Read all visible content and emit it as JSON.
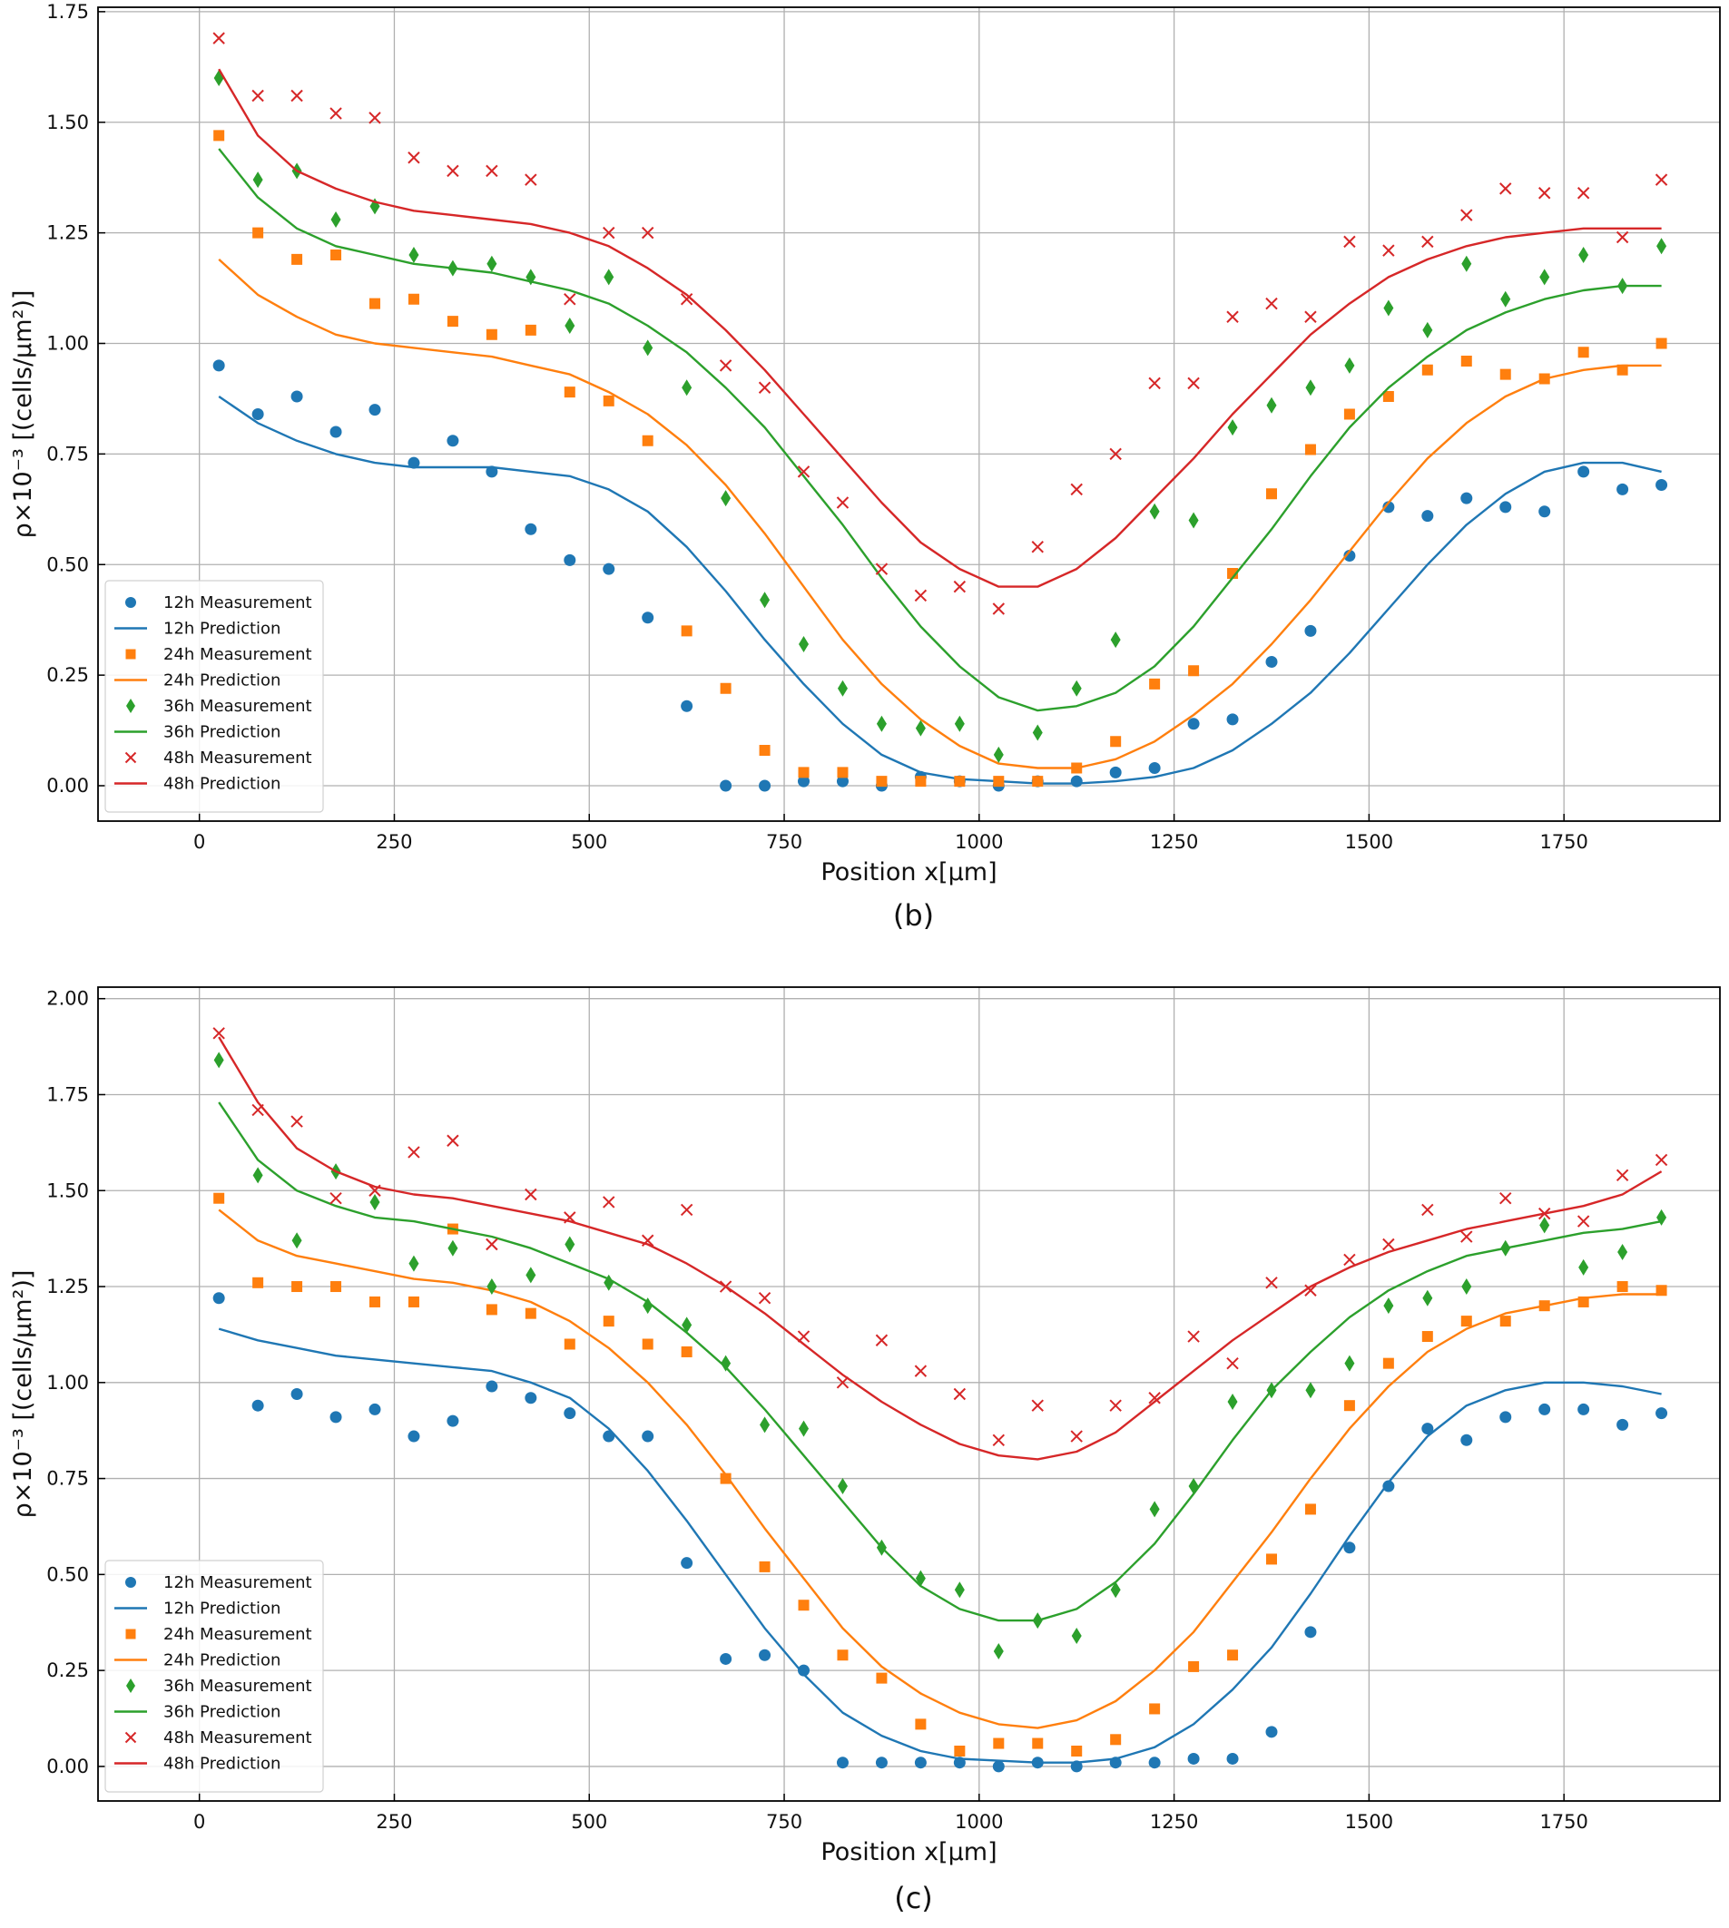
{
  "chart_data": [
    {
      "type": "scatter",
      "caption": "(b)",
      "xlabel": "Position x[μm]",
      "ylabel": "ρ×10⁻³ [(cells/μm²)]",
      "xlim": [
        -130,
        1950
      ],
      "ylim": [
        -0.08,
        1.76
      ],
      "xticks": [
        0,
        250,
        500,
        750,
        1000,
        1250,
        1500,
        1750
      ],
      "xtick_labels": [
        "0",
        "250",
        "500",
        "750",
        "1000",
        "1250",
        "1500",
        "1750"
      ],
      "yticks": [
        0,
        0.25,
        0.5,
        0.75,
        1.0,
        1.25,
        1.5,
        1.75
      ],
      "ytick_labels": [
        "0.00",
        "0.25",
        "0.50",
        "0.75",
        "1.00",
        "1.25",
        "1.50",
        "1.75"
      ],
      "grid": true,
      "legend_position": "lower-left",
      "x": [
        25,
        75,
        125,
        175,
        225,
        275,
        325,
        375,
        425,
        475,
        525,
        575,
        625,
        675,
        725,
        775,
        825,
        875,
        925,
        975,
        1025,
        1075,
        1125,
        1175,
        1225,
        1275,
        1325,
        1375,
        1425,
        1475,
        1525,
        1575,
        1625,
        1675,
        1725,
        1775,
        1825,
        1875
      ],
      "series": [
        {
          "name": "12h Measurement",
          "kind": "scatter",
          "marker": "circle",
          "color": "#1f77b4",
          "values": [
            0.95,
            0.84,
            0.88,
            0.8,
            0.85,
            0.73,
            0.78,
            0.71,
            0.58,
            0.51,
            0.49,
            0.38,
            0.18,
            0.0,
            0.0,
            0.01,
            0.01,
            0.0,
            0.02,
            0.01,
            0.0,
            0.01,
            0.01,
            0.03,
            0.04,
            0.14,
            0.15,
            0.28,
            0.35,
            0.52,
            0.63,
            0.61,
            0.65,
            0.63,
            0.62,
            0.71,
            0.67,
            0.68
          ]
        },
        {
          "name": "12h Prediction",
          "kind": "line",
          "color": "#1f77b4",
          "values": [
            0.88,
            0.82,
            0.78,
            0.75,
            0.73,
            0.72,
            0.72,
            0.72,
            0.71,
            0.7,
            0.67,
            0.62,
            0.54,
            0.44,
            0.33,
            0.23,
            0.14,
            0.07,
            0.03,
            0.015,
            0.01,
            0.005,
            0.005,
            0.01,
            0.02,
            0.04,
            0.08,
            0.14,
            0.21,
            0.3,
            0.4,
            0.5,
            0.59,
            0.66,
            0.71,
            0.73,
            0.73,
            0.71
          ]
        },
        {
          "name": "24h Measurement",
          "kind": "scatter",
          "marker": "square",
          "color": "#ff7f0e",
          "values": [
            1.47,
            1.25,
            1.19,
            1.2,
            1.09,
            1.1,
            1.05,
            1.02,
            1.03,
            0.89,
            0.87,
            0.78,
            0.35,
            0.22,
            0.08,
            0.03,
            0.03,
            0.01,
            0.01,
            0.01,
            0.01,
            0.01,
            0.04,
            0.1,
            0.23,
            0.26,
            0.48,
            0.66,
            0.76,
            0.84,
            0.88,
            0.94,
            0.96,
            0.93,
            0.92,
            0.98,
            0.94,
            1.0
          ]
        },
        {
          "name": "24h Prediction",
          "kind": "line",
          "color": "#ff7f0e",
          "values": [
            1.19,
            1.11,
            1.06,
            1.02,
            1.0,
            0.99,
            0.98,
            0.97,
            0.95,
            0.93,
            0.89,
            0.84,
            0.77,
            0.68,
            0.57,
            0.45,
            0.33,
            0.23,
            0.15,
            0.09,
            0.05,
            0.04,
            0.04,
            0.06,
            0.1,
            0.16,
            0.23,
            0.32,
            0.42,
            0.53,
            0.64,
            0.74,
            0.82,
            0.88,
            0.92,
            0.94,
            0.95,
            0.95
          ]
        },
        {
          "name": "36h Measurement",
          "kind": "scatter",
          "marker": "diamond",
          "color": "#2ca02c",
          "values": [
            1.6,
            1.37,
            1.39,
            1.28,
            1.31,
            1.2,
            1.17,
            1.18,
            1.15,
            1.04,
            1.15,
            0.99,
            0.9,
            0.65,
            0.42,
            0.32,
            0.22,
            0.14,
            0.13,
            0.14,
            0.07,
            0.12,
            0.22,
            0.33,
            0.62,
            0.6,
            0.81,
            0.86,
            0.9,
            0.95,
            1.08,
            1.03,
            1.18,
            1.1,
            1.15,
            1.2,
            1.13,
            1.22
          ]
        },
        {
          "name": "36h Prediction",
          "kind": "line",
          "color": "#2ca02c",
          "values": [
            1.44,
            1.33,
            1.26,
            1.22,
            1.2,
            1.18,
            1.17,
            1.16,
            1.14,
            1.12,
            1.09,
            1.04,
            0.98,
            0.9,
            0.81,
            0.7,
            0.59,
            0.47,
            0.36,
            0.27,
            0.2,
            0.17,
            0.18,
            0.21,
            0.27,
            0.36,
            0.47,
            0.58,
            0.7,
            0.81,
            0.9,
            0.97,
            1.03,
            1.07,
            1.1,
            1.12,
            1.13,
            1.13
          ]
        },
        {
          "name": "48h Measurement",
          "kind": "scatter",
          "marker": "x",
          "color": "#d62728",
          "values": [
            1.69,
            1.56,
            1.56,
            1.52,
            1.51,
            1.42,
            1.39,
            1.39,
            1.37,
            1.1,
            1.25,
            1.25,
            1.1,
            0.95,
            0.9,
            0.71,
            0.64,
            0.49,
            0.43,
            0.45,
            0.4,
            0.54,
            0.67,
            0.75,
            0.91,
            0.91,
            1.06,
            1.09,
            1.06,
            1.23,
            1.21,
            1.23,
            1.29,
            1.35,
            1.34,
            1.34,
            1.24,
            1.37
          ]
        },
        {
          "name": "48h Prediction",
          "kind": "line",
          "color": "#d62728",
          "values": [
            1.62,
            1.47,
            1.39,
            1.35,
            1.32,
            1.3,
            1.29,
            1.28,
            1.27,
            1.25,
            1.22,
            1.17,
            1.11,
            1.03,
            0.94,
            0.84,
            0.74,
            0.64,
            0.55,
            0.49,
            0.45,
            0.45,
            0.49,
            0.56,
            0.65,
            0.74,
            0.84,
            0.93,
            1.02,
            1.09,
            1.15,
            1.19,
            1.22,
            1.24,
            1.25,
            1.26,
            1.26,
            1.26
          ]
        }
      ]
    },
    {
      "type": "scatter",
      "caption": "(c)",
      "xlabel": "Position x[μm]",
      "ylabel": "ρ×10⁻³ [(cells/μm²)]",
      "xlim": [
        -130,
        1950
      ],
      "ylim": [
        -0.09,
        2.03
      ],
      "xticks": [
        0,
        250,
        500,
        750,
        1000,
        1250,
        1500,
        1750
      ],
      "xtick_labels": [
        "0",
        "250",
        "500",
        "750",
        "1000",
        "1250",
        "1500",
        "1750"
      ],
      "yticks": [
        0,
        0.25,
        0.5,
        0.75,
        1.0,
        1.25,
        1.5,
        1.75,
        2.0
      ],
      "ytick_labels": [
        "0.00",
        "0.25",
        "0.50",
        "0.75",
        "1.00",
        "1.25",
        "1.50",
        "1.75",
        "2.00"
      ],
      "grid": true,
      "legend_position": "lower-left",
      "x": [
        25,
        75,
        125,
        175,
        225,
        275,
        325,
        375,
        425,
        475,
        525,
        575,
        625,
        675,
        725,
        775,
        825,
        875,
        925,
        975,
        1025,
        1075,
        1125,
        1175,
        1225,
        1275,
        1325,
        1375,
        1425,
        1475,
        1525,
        1575,
        1625,
        1675,
        1725,
        1775,
        1825,
        1875
      ],
      "series": [
        {
          "name": "12h Measurement",
          "kind": "scatter",
          "marker": "circle",
          "color": "#1f77b4",
          "values": [
            1.22,
            0.94,
            0.97,
            0.91,
            0.93,
            0.86,
            0.9,
            0.99,
            0.96,
            0.92,
            0.86,
            0.86,
            0.53,
            0.28,
            0.29,
            0.25,
            0.01,
            0.01,
            0.01,
            0.01,
            0.0,
            0.01,
            0.0,
            0.01,
            0.01,
            0.02,
            0.02,
            0.09,
            0.35,
            0.57,
            0.73,
            0.88,
            0.85,
            0.91,
            0.93,
            0.93,
            0.89,
            0.92
          ]
        },
        {
          "name": "12h Prediction",
          "kind": "line",
          "color": "#1f77b4",
          "values": [
            1.14,
            1.11,
            1.09,
            1.07,
            1.06,
            1.05,
            1.04,
            1.03,
            1.0,
            0.96,
            0.88,
            0.77,
            0.64,
            0.5,
            0.36,
            0.24,
            0.14,
            0.08,
            0.04,
            0.02,
            0.015,
            0.01,
            0.01,
            0.02,
            0.05,
            0.11,
            0.2,
            0.31,
            0.45,
            0.6,
            0.74,
            0.86,
            0.94,
            0.98,
            1.0,
            1.0,
            0.99,
            0.97
          ]
        },
        {
          "name": "24h Measurement",
          "kind": "scatter",
          "marker": "square",
          "color": "#ff7f0e",
          "values": [
            1.48,
            1.26,
            1.25,
            1.25,
            1.21,
            1.21,
            1.4,
            1.19,
            1.18,
            1.1,
            1.16,
            1.1,
            1.08,
            0.75,
            0.52,
            0.42,
            0.29,
            0.23,
            0.11,
            0.04,
            0.06,
            0.06,
            0.04,
            0.07,
            0.15,
            0.26,
            0.29,
            0.54,
            0.67,
            0.94,
            1.05,
            1.12,
            1.16,
            1.16,
            1.2,
            1.21,
            1.25,
            1.24
          ]
        },
        {
          "name": "24h Prediction",
          "kind": "line",
          "color": "#ff7f0e",
          "values": [
            1.45,
            1.37,
            1.33,
            1.31,
            1.29,
            1.27,
            1.26,
            1.24,
            1.21,
            1.16,
            1.09,
            1.0,
            0.89,
            0.76,
            0.62,
            0.49,
            0.36,
            0.26,
            0.19,
            0.14,
            0.11,
            0.1,
            0.12,
            0.17,
            0.25,
            0.35,
            0.48,
            0.61,
            0.75,
            0.88,
            0.99,
            1.08,
            1.14,
            1.18,
            1.2,
            1.22,
            1.23,
            1.23
          ]
        },
        {
          "name": "36h Measurement",
          "kind": "scatter",
          "marker": "diamond",
          "color": "#2ca02c",
          "values": [
            1.84,
            1.54,
            1.37,
            1.55,
            1.47,
            1.31,
            1.35,
            1.25,
            1.28,
            1.36,
            1.26,
            1.2,
            1.15,
            1.05,
            0.89,
            0.88,
            0.73,
            0.57,
            0.49,
            0.46,
            0.3,
            0.38,
            0.34,
            0.46,
            0.67,
            0.73,
            0.95,
            0.98,
            0.98,
            1.05,
            1.2,
            1.22,
            1.25,
            1.35,
            1.41,
            1.3,
            1.34,
            1.43
          ]
        },
        {
          "name": "36h Prediction",
          "kind": "line",
          "color": "#2ca02c",
          "values": [
            1.73,
            1.58,
            1.5,
            1.46,
            1.43,
            1.42,
            1.4,
            1.38,
            1.35,
            1.31,
            1.27,
            1.21,
            1.13,
            1.04,
            0.93,
            0.81,
            0.69,
            0.57,
            0.47,
            0.41,
            0.38,
            0.38,
            0.41,
            0.48,
            0.58,
            0.71,
            0.85,
            0.98,
            1.08,
            1.17,
            1.24,
            1.29,
            1.33,
            1.35,
            1.37,
            1.39,
            1.4,
            1.42
          ]
        },
        {
          "name": "48h Measurement",
          "kind": "scatter",
          "marker": "x",
          "color": "#d62728",
          "values": [
            1.91,
            1.71,
            1.68,
            1.48,
            1.5,
            1.6,
            1.63,
            1.36,
            1.49,
            1.43,
            1.47,
            1.37,
            1.45,
            1.25,
            1.22,
            1.12,
            1.0,
            1.11,
            1.03,
            0.97,
            0.85,
            0.94,
            0.86,
            0.94,
            0.96,
            1.12,
            1.05,
            1.26,
            1.24,
            1.32,
            1.36,
            1.45,
            1.38,
            1.48,
            1.44,
            1.42,
            1.54,
            1.58
          ]
        },
        {
          "name": "48h Prediction",
          "kind": "line",
          "color": "#d62728",
          "values": [
            1.9,
            1.73,
            1.61,
            1.55,
            1.51,
            1.49,
            1.48,
            1.46,
            1.44,
            1.42,
            1.39,
            1.36,
            1.31,
            1.25,
            1.18,
            1.1,
            1.02,
            0.95,
            0.89,
            0.84,
            0.81,
            0.8,
            0.82,
            0.87,
            0.95,
            1.03,
            1.11,
            1.18,
            1.25,
            1.3,
            1.34,
            1.37,
            1.4,
            1.42,
            1.44,
            1.46,
            1.49,
            1.55
          ]
        }
      ]
    }
  ]
}
